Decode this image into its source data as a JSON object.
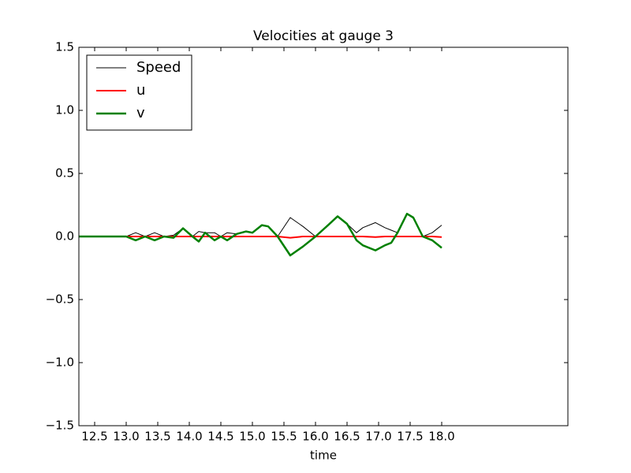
{
  "chart_data": {
    "type": "line",
    "title": "Velocities at gauge 3",
    "xlabel": "time",
    "x": [
      12.25,
      12.5,
      12.8,
      13.0,
      13.15,
      13.3,
      13.45,
      13.6,
      13.75,
      13.9,
      14.05,
      14.15,
      14.25,
      14.4,
      14.5,
      14.6,
      14.75,
      14.9,
      15.0,
      15.15,
      15.25,
      15.4,
      15.6,
      15.8,
      16.0,
      16.2,
      16.35,
      16.5,
      16.65,
      16.75,
      16.95,
      17.1,
      17.2,
      17.3,
      17.45,
      17.55,
      17.7,
      17.85,
      18.0
    ],
    "series": [
      {
        "name": "Speed",
        "color": "#000000",
        "width": 1,
        "values": [
          0,
          0,
          0,
          0,
          0.03,
          0,
          0.03,
          0,
          0.01,
          0.065,
          0,
          0.04,
          0.03,
          0.03,
          0,
          0.03,
          0.02,
          0.04,
          0.03,
          0.09,
          0.08,
          0,
          0.15,
          0.08,
          0,
          0.09,
          0.16,
          0.1,
          0.03,
          0.07,
          0.11,
          0.07,
          0.05,
          0.03,
          0.18,
          0.15,
          0,
          0.03,
          0.09
        ]
      },
      {
        "name": "u",
        "color": "#ff0000",
        "width": 2,
        "values": [
          0,
          0,
          0,
          0,
          0,
          0,
          0,
          0,
          0,
          0,
          0,
          0,
          0,
          0,
          0,
          0,
          0,
          0,
          0,
          0,
          0,
          0,
          -0.01,
          0,
          0,
          0,
          0,
          0,
          0,
          0,
          -0.005,
          0,
          0,
          0,
          0,
          0,
          0,
          0,
          -0.005
        ]
      },
      {
        "name": "v",
        "color": "#008000",
        "width": 2.5,
        "values": [
          0,
          0,
          0,
          0,
          -0.03,
          0,
          -0.03,
          0,
          -0.01,
          0.065,
          0,
          -0.04,
          0.03,
          -0.03,
          0,
          -0.03,
          0.02,
          0.04,
          0.03,
          0.09,
          0.08,
          0,
          -0.15,
          -0.08,
          0,
          0.09,
          0.16,
          0.1,
          -0.03,
          -0.07,
          -0.11,
          -0.07,
          -0.05,
          0.03,
          0.18,
          0.15,
          0,
          -0.03,
          -0.09
        ]
      }
    ],
    "xlim": [
      12.25,
      20
    ],
    "xticks": [
      12.5,
      {
        "value": 13,
        "label": "13.0"
      },
      13.5,
      {
        "value": 14,
        "label": "14.0"
      },
      14.5,
      {
        "value": 15,
        "label": "15.0"
      },
      15.5,
      {
        "value": 16,
        "label": "16.0"
      },
      16.5,
      {
        "value": 17,
        "label": "17.0"
      },
      17.5,
      {
        "value": 18,
        "label": "18.0"
      }
    ],
    "ylim": [
      -1.5,
      1.5
    ],
    "yticks": [
      {
        "value": -1.5,
        "label": "−1.5"
      },
      {
        "value": -1,
        "label": "−1.0"
      },
      {
        "value": -0.5,
        "label": "−0.5"
      },
      {
        "value": 0,
        "label": "0.0"
      },
      0.5,
      {
        "value": 1,
        "label": "1.0"
      },
      1.5
    ],
    "legend": "upper left"
  }
}
